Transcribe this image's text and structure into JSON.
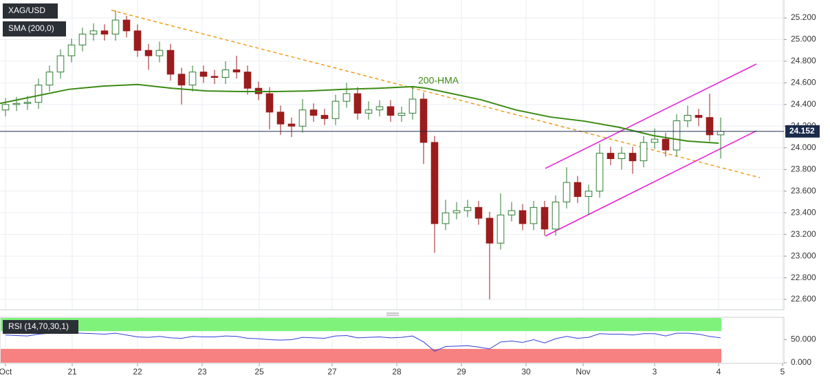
{
  "chart_data": [
    {
      "type": "candlestick",
      "title": "XAG/USD",
      "xlim": [
        0,
        285
      ],
      "ylim": [
        22.505,
        25.365
      ],
      "yticks": [
        {
          "value": 22.6,
          "label": "22.600"
        },
        {
          "value": 22.8,
          "label": "22.800"
        },
        {
          "value": 23.0,
          "label": "23.000"
        },
        {
          "value": 23.2,
          "label": "23.200"
        },
        {
          "value": 23.4,
          "label": "23.400"
        },
        {
          "value": 23.6,
          "label": "23.600"
        },
        {
          "value": 23.8,
          "label": "23.800"
        },
        {
          "value": 24.0,
          "label": "24.000"
        },
        {
          "value": 24.2,
          "label": "24.200"
        },
        {
          "value": 24.4,
          "label": "24.400"
        },
        {
          "value": 24.6,
          "label": "24.600"
        },
        {
          "value": 24.8,
          "label": "24.800"
        },
        {
          "value": 25.0,
          "label": "25.000"
        },
        {
          "value": 25.2,
          "label": "25.200"
        }
      ],
      "xticks": [
        {
          "value": 2,
          "label": "Oct"
        },
        {
          "value": 26.25,
          "label": "21"
        },
        {
          "value": 50,
          "label": "22"
        },
        {
          "value": 73.5,
          "label": "23"
        },
        {
          "value": 94.25,
          "label": "25"
        },
        {
          "value": 120.75,
          "label": "27"
        },
        {
          "value": 144.25,
          "label": "28"
        },
        {
          "value": 167.75,
          "label": "29"
        },
        {
          "value": 191.25,
          "label": "30"
        },
        {
          "value": 212,
          "label": "Nov"
        },
        {
          "value": 238,
          "label": "3"
        },
        {
          "value": 261.25,
          "label": "4"
        },
        {
          "value": 284.5,
          "label": "5"
        }
      ],
      "grid": true,
      "up_color": "#2e7d32",
      "down_color": "#9b1c1c",
      "x": [
        2,
        6,
        10,
        14,
        18,
        22,
        26,
        30,
        34,
        38,
        42,
        46,
        50,
        54,
        58,
        62,
        66,
        70,
        74,
        78,
        82,
        86,
        90,
        94,
        98,
        102,
        106,
        110,
        114,
        118,
        122,
        126,
        130,
        134,
        138,
        142,
        146,
        150,
        154,
        158,
        162,
        166,
        170,
        174,
        178,
        182,
        186,
        190,
        194,
        198,
        202,
        206,
        210,
        214,
        218,
        222,
        226,
        230,
        234,
        238,
        242,
        246,
        250,
        254,
        258,
        262
      ],
      "open": [
        24.35,
        24.4,
        24.41,
        24.42,
        24.58,
        24.7,
        24.85,
        24.95,
        25.05,
        25.08,
        25.05,
        25.18,
        25.08,
        24.9,
        24.85,
        24.9,
        24.68,
        24.58,
        24.7,
        24.66,
        24.65,
        24.72,
        24.7,
        24.55,
        24.5,
        24.33,
        24.22,
        24.2,
        24.35,
        24.3,
        24.27,
        24.43,
        24.5,
        24.32,
        24.35,
        24.38,
        24.3,
        24.32,
        24.45,
        24.05,
        23.3,
        23.4,
        23.42,
        23.45,
        23.35,
        23.12,
        23.38,
        23.42,
        23.3,
        23.45,
        23.25,
        23.5,
        23.68,
        23.55,
        23.6,
        23.95,
        23.9,
        23.95,
        23.88,
        24.05,
        24.08,
        23.98,
        24.25,
        24.3,
        24.28,
        24.12
      ],
      "high": [
        24.46,
        24.47,
        24.48,
        24.64,
        24.76,
        24.91,
        25.01,
        25.11,
        25.15,
        25.14,
        25.27,
        25.22,
        25.14,
        24.96,
        24.98,
        24.96,
        24.74,
        24.76,
        24.76,
        24.72,
        24.8,
        24.85,
        24.76,
        24.61,
        24.56,
        24.39,
        24.28,
        24.45,
        24.41,
        24.36,
        24.49,
        24.6,
        24.56,
        24.43,
        24.44,
        24.44,
        24.38,
        24.56,
        24.51,
        24.11,
        23.52,
        23.5,
        23.52,
        23.51,
        23.41,
        23.58,
        23.5,
        23.48,
        23.51,
        23.51,
        23.56,
        23.82,
        23.74,
        23.66,
        24.04,
        24.01,
        24.01,
        24.01,
        24.11,
        24.18,
        24.14,
        24.31,
        24.39,
        24.36,
        24.5,
        24.28
      ],
      "low": [
        24.29,
        24.34,
        24.35,
        24.36,
        24.52,
        24.64,
        24.79,
        24.89,
        24.99,
        24.99,
        24.99,
        25.02,
        24.84,
        24.72,
        24.79,
        24.62,
        24.4,
        24.52,
        24.6,
        24.59,
        24.59,
        24.64,
        24.49,
        24.44,
        24.17,
        24.12,
        24.1,
        24.14,
        24.24,
        24.21,
        24.21,
        24.37,
        24.26,
        24.26,
        24.29,
        24.24,
        24.24,
        24.26,
        23.85,
        23.03,
        23.24,
        23.34,
        23.36,
        23.29,
        22.6,
        23.06,
        23.32,
        23.24,
        23.24,
        23.19,
        23.19,
        23.44,
        23.49,
        23.38,
        23.54,
        23.84,
        23.8,
        23.76,
        23.82,
        23.99,
        23.92,
        23.92,
        24.19,
        24.2,
        24.06,
        23.9
      ],
      "close": [
        24.4,
        24.41,
        24.42,
        24.58,
        24.7,
        24.85,
        24.95,
        25.05,
        25.08,
        25.05,
        25.18,
        25.08,
        24.9,
        24.85,
        24.9,
        24.68,
        24.58,
        24.7,
        24.66,
        24.65,
        24.72,
        24.7,
        24.55,
        24.5,
        24.33,
        24.22,
        24.2,
        24.35,
        24.3,
        24.27,
        24.43,
        24.5,
        24.32,
        24.35,
        24.38,
        24.3,
        24.32,
        24.45,
        24.05,
        23.3,
        23.4,
        23.42,
        23.45,
        23.35,
        23.12,
        23.38,
        23.42,
        23.3,
        23.45,
        23.25,
        23.5,
        23.68,
        23.55,
        23.6,
        23.95,
        23.9,
        23.95,
        23.88,
        24.05,
        24.08,
        23.98,
        24.25,
        24.3,
        24.28,
        24.12,
        24.152
      ],
      "series": [
        {
          "name": "SMA (200,0)",
          "color": "#3a8a12",
          "x": [
            0,
            12.5,
            25,
            37.5,
            50,
            62.5,
            75,
            87.5,
            100,
            112.5,
            125,
            137.5,
            150,
            155,
            162.5,
            175,
            187.5,
            200,
            212.5,
            225,
            237.5,
            250,
            261.25
          ],
          "values": [
            24.41,
            24.475,
            24.54,
            24.57,
            24.585,
            24.55,
            24.525,
            24.52,
            24.52,
            24.525,
            24.54,
            24.55,
            24.565,
            24.55,
            24.51,
            24.443,
            24.35,
            24.285,
            24.246,
            24.19,
            24.113,
            24.062,
            24.043
          ]
        }
      ],
      "annotation": "200-HMA",
      "trendlines": [
        {
          "color": "#f5a01e",
          "dashed": true,
          "x": [
            40.5,
            276.25
          ],
          "values": [
            25.27,
            23.725
          ]
        },
        {
          "color": "#e523d6",
          "dashed": false,
          "x": [
            198.25,
            275
          ],
          "values": [
            23.81,
            24.774
          ]
        },
        {
          "color": "#e523d6",
          "dashed": false,
          "x": [
            198.25,
            275
          ],
          "values": [
            23.185,
            24.157
          ]
        }
      ],
      "last_price": 24.152,
      "last_price_color": "#1a2b4c"
    },
    {
      "type": "line",
      "title": "RSI (14,70,30,1)",
      "ylim": [
        -1.5,
        98.5
      ],
      "yticks": [
        {
          "value": 0,
          "label": "0.000"
        },
        {
          "value": 50,
          "label": "50.000"
        }
      ],
      "overbought": 70,
      "oversold": 30,
      "overbought_color": "#7ef27a",
      "oversold_color": "#f78080",
      "color": "#2f3fd6",
      "values": [
        60,
        59,
        58,
        62,
        64,
        66,
        65,
        64,
        63,
        62,
        64,
        60,
        56,
        55,
        57,
        54,
        53,
        57,
        56,
        56,
        58,
        57,
        53,
        52,
        50,
        49,
        50,
        55,
        54,
        53,
        58,
        59,
        54,
        55,
        56,
        54,
        55,
        58,
        45,
        25,
        35,
        36,
        37,
        34,
        30,
        45,
        47,
        44,
        50,
        43,
        52,
        57,
        53,
        55,
        63,
        62,
        62,
        60,
        63,
        63,
        58,
        64,
        64,
        62,
        57,
        54
      ]
    }
  ]
}
